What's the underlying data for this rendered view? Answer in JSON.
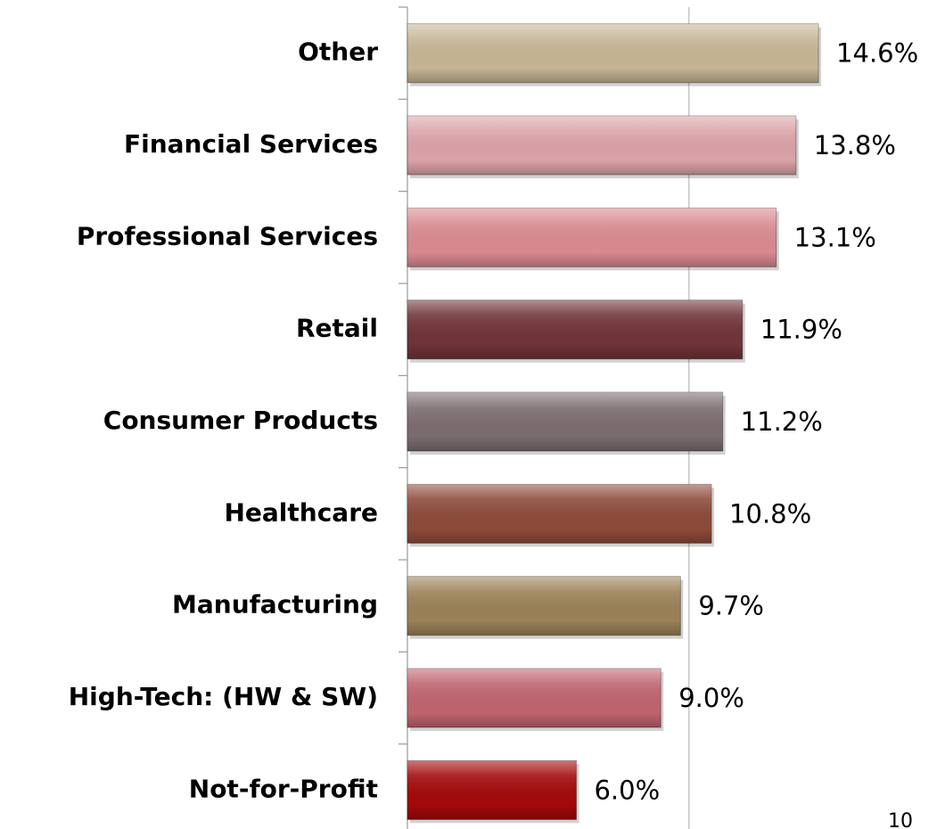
{
  "chart_data": {
    "type": "bar",
    "orientation": "horizontal",
    "categories": [
      "Other",
      "Financial Services",
      "Professional Services",
      "Retail",
      "Consumer Products",
      "Healthcare",
      "Manufacturing",
      "High-Tech: (HW & SW)",
      "Not-for-Profit"
    ],
    "values": [
      14.6,
      13.8,
      13.1,
      11.9,
      11.2,
      10.8,
      9.7,
      9.0,
      6.0
    ],
    "value_labels": [
      "14.6%",
      "13.8%",
      "13.1%",
      "11.9%",
      "11.2%",
      "10.8%",
      "9.7%",
      "9.0%",
      "6.0%"
    ],
    "colors": [
      "#c6b594",
      "#dba3a8",
      "#d98a90",
      "#6f3437",
      "#7b6c6f",
      "#8e4a3a",
      "#9b8157",
      "#c0646f",
      "#a3090a"
    ],
    "xlim": [
      0,
      19
    ],
    "xticks": [
      0,
      10
    ],
    "grid": true
  },
  "page_number": "10"
}
